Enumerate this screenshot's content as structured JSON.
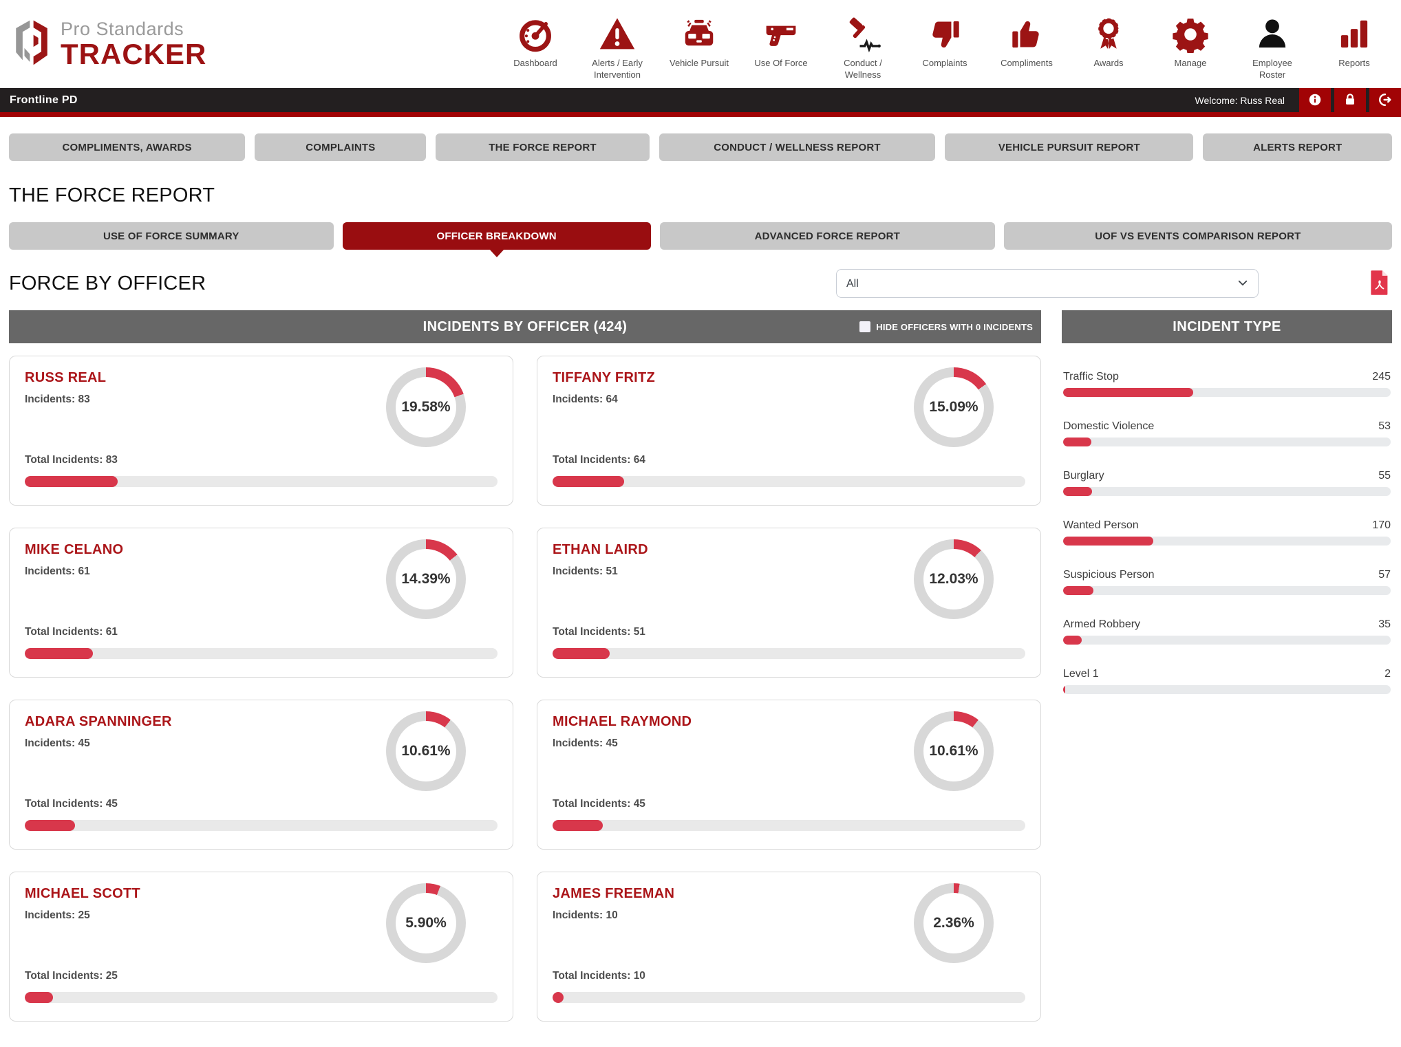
{
  "brand": {
    "line1": "Pro Standards",
    "line2": "TRACKER"
  },
  "colors": {
    "accent_red": "#d8374b",
    "officer_name_red": "#ab1519",
    "selected_tab_red": "#990d10",
    "nav_icon_red": "#9c1414",
    "topbar_black": "#231f20",
    "topbar_underline_red": "#a10305",
    "panel_header_gray": "#676767",
    "tab_gray": "#c8c8c8",
    "donut_track_gray": "#d8d8d8"
  },
  "header": {
    "nav": [
      {
        "label": "Dashboard",
        "icon": "gauge-icon"
      },
      {
        "label": "Alerts / Early Intervention",
        "icon": "alert-triangle-icon"
      },
      {
        "label": "Vehicle Pursuit",
        "icon": "police-car-icon"
      },
      {
        "label": "Use Of Force",
        "icon": "taser-icon"
      },
      {
        "label": "Conduct / Wellness",
        "icon": "gavel-pulse-icon"
      },
      {
        "label": "Complaints",
        "icon": "thumbs-down-icon"
      },
      {
        "label": "Compliments",
        "icon": "thumbs-up-icon"
      },
      {
        "label": "Awards",
        "icon": "award-ribbon-icon"
      },
      {
        "label": "Manage",
        "icon": "gear-icon"
      },
      {
        "label": "Employee Roster",
        "icon": "person-icon",
        "color": "#111111"
      },
      {
        "label": "Reports",
        "icon": "bar-chart-icon"
      }
    ]
  },
  "topbar": {
    "agency": "Frontline PD",
    "welcome": "Welcome: Russ Real",
    "buttons": [
      {
        "name": "info-button",
        "icon": "info-icon"
      },
      {
        "name": "lock-button",
        "icon": "lock-icon"
      },
      {
        "name": "logout-button",
        "icon": "logout-icon"
      }
    ]
  },
  "tabs": [
    "COMPLIMENTS, AWARDS",
    "COMPLAINTS",
    "THE FORCE REPORT",
    "CONDUCT / WELLNESS REPORT",
    "VEHICLE PURSUIT REPORT",
    "ALERTS REPORT"
  ],
  "page_title": "THE FORCE REPORT",
  "subtabs": [
    {
      "label": "USE OF FORCE SUMMARY",
      "selected": false
    },
    {
      "label": "OFFICER BREAKDOWN",
      "selected": true
    },
    {
      "label": "ADVANCED FORCE REPORT",
      "selected": false
    },
    {
      "label": "UOF VS EVENTS COMPARISON REPORT",
      "selected": false
    }
  ],
  "section": {
    "title": "FORCE BY OFFICER",
    "filter_value": "All",
    "export_icon": "pdf-icon"
  },
  "officer_panel": {
    "header": "INCIDENTS BY OFFICER (424)",
    "hide_checkbox_label": "HIDE OFFICERS WITH 0 INCIDENTS",
    "checkbox_checked": false
  },
  "incident_panel": {
    "header": "INCIDENT TYPE"
  },
  "labels": {
    "incidents": "Incidents:",
    "total_incidents": "Total Incidents:"
  },
  "chart_data": [
    {
      "type": "donut",
      "title": "Incidents by Officer",
      "total_incidents": 424,
      "officers": [
        {
          "name": "RUSS REAL",
          "incidents": 83,
          "total_incidents": 83,
          "pct": 19.58,
          "pct_label": "19.58%"
        },
        {
          "name": "TIFFANY FRITZ",
          "incidents": 64,
          "total_incidents": 64,
          "pct": 15.09,
          "pct_label": "15.09%"
        },
        {
          "name": "MIKE CELANO",
          "incidents": 61,
          "total_incidents": 61,
          "pct": 14.39,
          "pct_label": "14.39%"
        },
        {
          "name": "ETHAN LAIRD",
          "incidents": 51,
          "total_incidents": 51,
          "pct": 12.03,
          "pct_label": "12.03%"
        },
        {
          "name": "ADARA SPANNINGER",
          "incidents": 45,
          "total_incidents": 45,
          "pct": 10.61,
          "pct_label": "10.61%"
        },
        {
          "name": "MICHAEL RAYMOND",
          "incidents": 45,
          "total_incidents": 45,
          "pct": 10.61,
          "pct_label": "10.61%"
        },
        {
          "name": "MICHAEL SCOTT",
          "incidents": 25,
          "total_incidents": 25,
          "pct": 5.9,
          "pct_label": "5.90%"
        },
        {
          "name": "JAMES FREEMAN",
          "incidents": 10,
          "total_incidents": 10,
          "pct": 2.36,
          "pct_label": "2.36%"
        }
      ]
    },
    {
      "type": "bar",
      "title": "Incident Type",
      "categories": [
        "Traffic Stop",
        "Domestic Violence",
        "Burglary",
        "Wanted Person",
        "Suspicious Person",
        "Armed Robbery",
        "Level 1"
      ],
      "values": [
        245,
        53,
        55,
        170,
        57,
        35,
        2
      ],
      "bar_scale_total": 617
    }
  ]
}
